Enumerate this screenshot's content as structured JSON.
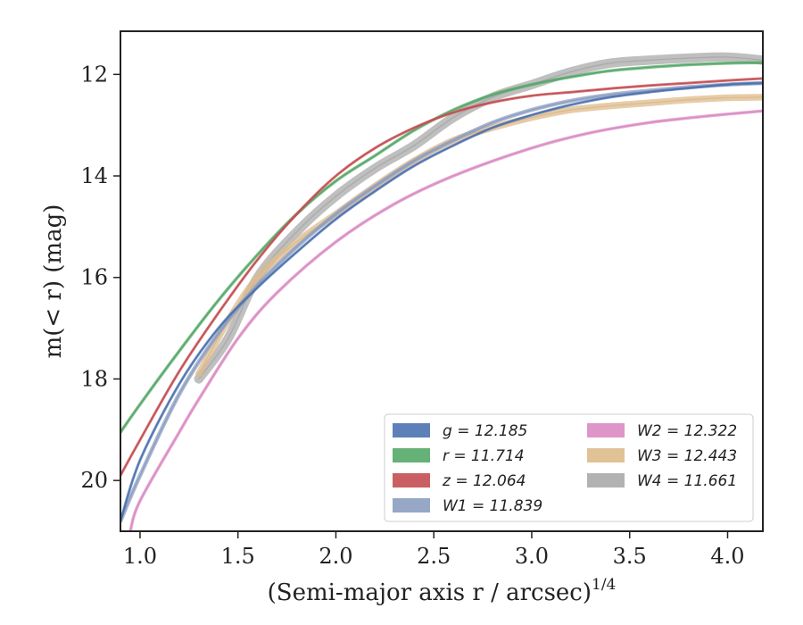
{
  "chart_data": {
    "type": "line",
    "xlabel": "(Semi-major axis r / arcsec)",
    "xlabel_superscript": "1/4",
    "ylabel": "m(< r) (mag)",
    "xlim": [
      0.9,
      4.18
    ],
    "ylim": [
      21.0,
      11.15
    ],
    "y_inverted": true,
    "xticks": [
      1.0,
      1.5,
      2.0,
      2.5,
      3.0,
      3.5,
      4.0
    ],
    "xtick_labels": [
      "1.0",
      "1.5",
      "2.0",
      "2.5",
      "3.0",
      "3.5",
      "4.0"
    ],
    "yticks": [
      12,
      14,
      16,
      18,
      20
    ],
    "ytick_labels": [
      "12",
      "14",
      "16",
      "18",
      "20"
    ],
    "grid": false,
    "legend_position": "lower-right",
    "series": [
      {
        "name": "g = 12.185",
        "color": "#4C72B0",
        "band_width": 1.5,
        "x": [
          0.9,
          1.0,
          1.2,
          1.4,
          1.6,
          1.8,
          2.0,
          2.2,
          2.4,
          2.6,
          2.8,
          3.0,
          3.2,
          3.4,
          3.6,
          3.8,
          4.0,
          4.18
        ],
        "y": [
          20.8,
          19.6,
          18.1,
          17.0,
          16.2,
          15.5,
          14.85,
          14.3,
          13.8,
          13.4,
          13.05,
          12.8,
          12.6,
          12.45,
          12.35,
          12.27,
          12.2,
          12.17
        ]
      },
      {
        "name": "r = 11.714",
        "color": "#55A868",
        "band_width": 2,
        "x": [
          0.9,
          1.0,
          1.2,
          1.4,
          1.6,
          1.8,
          2.0,
          2.2,
          2.4,
          2.6,
          2.8,
          3.0,
          3.2,
          3.4,
          3.6,
          3.8,
          4.0,
          4.18
        ],
        "y": [
          19.05,
          18.5,
          17.45,
          16.45,
          15.55,
          14.75,
          14.1,
          13.6,
          13.1,
          12.7,
          12.4,
          12.2,
          12.05,
          11.93,
          11.86,
          11.81,
          11.78,
          11.77
        ]
      },
      {
        "name": "z = 12.064",
        "color": "#C44E52",
        "band_width": 1.5,
        "x": [
          0.9,
          1.0,
          1.2,
          1.4,
          1.6,
          1.8,
          2.0,
          2.2,
          2.4,
          2.6,
          2.8,
          3.0,
          3.2,
          3.4,
          3.6,
          3.8,
          4.0,
          4.18
        ],
        "y": [
          19.9,
          19.2,
          17.85,
          16.7,
          15.65,
          14.75,
          14.0,
          13.45,
          13.05,
          12.75,
          12.55,
          12.42,
          12.35,
          12.28,
          12.22,
          12.17,
          12.12,
          12.08
        ]
      },
      {
        "name": "W1 = 11.839",
        "color": "#8C9DC0",
        "band_width": 3,
        "x": [
          0.9,
          1.0,
          1.2,
          1.4,
          1.6,
          1.8,
          2.0,
          2.2,
          2.4,
          2.6,
          2.8,
          3.0,
          3.2,
          3.4,
          3.6,
          3.8,
          4.0,
          4.18
        ],
        "y": [
          20.8,
          19.9,
          18.3,
          17.1,
          16.15,
          15.4,
          14.75,
          14.2,
          13.7,
          13.3,
          12.95,
          12.7,
          12.52,
          12.4,
          12.32,
          12.25,
          12.2,
          12.17
        ]
      },
      {
        "name": "W2 = 12.322",
        "color": "#DA8BC3",
        "band_width": 2,
        "x": [
          0.95,
          1.0,
          1.2,
          1.3,
          1.5,
          1.7,
          2.0,
          2.3,
          2.6,
          3.0,
          3.3,
          3.6,
          3.9,
          4.18
        ],
        "y": [
          21.0,
          20.4,
          19.05,
          18.4,
          17.2,
          16.3,
          15.3,
          14.55,
          14.0,
          13.45,
          13.15,
          12.95,
          12.82,
          12.72
        ]
      },
      {
        "name": "W3 = 12.443",
        "color": "#DDBB8C",
        "band_width": 6,
        "x": [
          1.3,
          1.45,
          1.6,
          1.8,
          2.0,
          2.2,
          2.4,
          2.6,
          2.8,
          3.0,
          3.2,
          3.4,
          3.6,
          3.8,
          4.0,
          4.18
        ],
        "y": [
          17.9,
          16.85,
          16.0,
          15.3,
          14.75,
          14.2,
          13.7,
          13.3,
          13.05,
          12.85,
          12.7,
          12.62,
          12.56,
          12.5,
          12.46,
          12.45
        ]
      },
      {
        "name": "W4 = 11.661",
        "color": "#AAAAAA",
        "band_width": 9,
        "x": [
          1.3,
          1.45,
          1.6,
          1.8,
          2.0,
          2.2,
          2.4,
          2.6,
          2.8,
          3.0,
          3.2,
          3.4,
          3.6,
          3.8,
          4.0,
          4.18
        ],
        "y": [
          18.0,
          17.2,
          16.0,
          15.1,
          14.4,
          13.85,
          13.4,
          12.85,
          12.45,
          12.2,
          11.95,
          11.78,
          11.72,
          11.68,
          11.66,
          11.72
        ]
      }
    ]
  }
}
